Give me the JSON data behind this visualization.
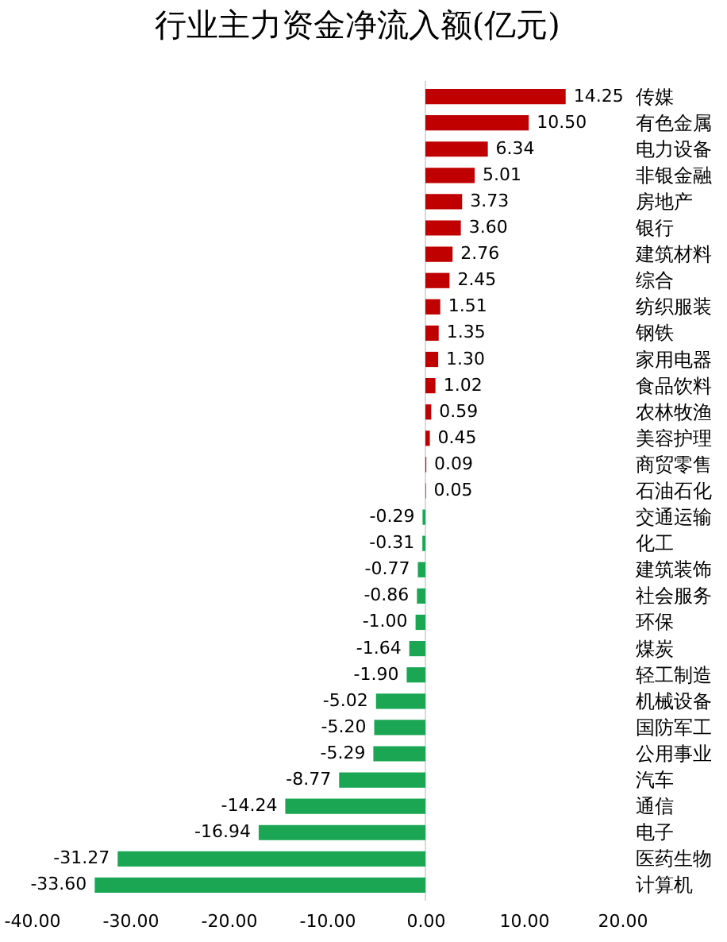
{
  "chart_data": {
    "type": "bar",
    "orientation": "horizontal",
    "title": "行业主力资金净流入额(亿元)",
    "categories": [
      "传媒",
      "有色金属",
      "电力设备",
      "非银金融",
      "房地产",
      "银行",
      "建筑材料",
      "综合",
      "纺织服装",
      "钢铁",
      "家用电器",
      "食品饮料",
      "农林牧渔",
      "美容护理",
      "商贸零售",
      "石油石化",
      "交通运输",
      "化工",
      "建筑装饰",
      "社会服务",
      "环保",
      "煤炭",
      "轻工制造",
      "机械设备",
      "国防军工",
      "公用事业",
      "汽车",
      "通信",
      "电子",
      "医药生物",
      "计算机"
    ],
    "values": [
      14.25,
      10.5,
      6.34,
      5.01,
      3.73,
      3.6,
      2.76,
      2.45,
      1.51,
      1.35,
      1.3,
      1.02,
      0.59,
      0.45,
      0.09,
      0.05,
      -0.29,
      -0.31,
      -0.77,
      -0.86,
      -1.0,
      -1.64,
      -1.9,
      -5.02,
      -5.2,
      -5.29,
      -8.77,
      -14.24,
      -16.94,
      -31.27,
      -33.6
    ],
    "value_labels": [
      "14.25",
      "10.50",
      "6.34",
      "5.01",
      "3.73",
      "3.60",
      "2.76",
      "2.45",
      "1.51",
      "1.35",
      "1.30",
      "1.02",
      "0.59",
      "0.45",
      "0.09",
      "0.05",
      "-0.29",
      "-0.31",
      "-0.77",
      "-0.86",
      "-1.00",
      "-1.64",
      "-1.90",
      "-5.02",
      "-5.20",
      "-5.29",
      "-8.77",
      "-14.24",
      "-16.94",
      "-31.27",
      "-33.60"
    ],
    "colors": [
      "#c00000",
      "#c00000",
      "#c00000",
      "#c00000",
      "#c00000",
      "#c00000",
      "#c00000",
      "#c00000",
      "#c00000",
      "#c00000",
      "#c00000",
      "#c00000",
      "#c00000",
      "#c00000",
      "#c00000",
      "#c00000",
      "#1aa653",
      "#1aa653",
      "#1aa653",
      "#1aa653",
      "#1aa653",
      "#1aa653",
      "#1aa653",
      "#1aa653",
      "#1aa653",
      "#1aa653",
      "#1aa653",
      "#1aa653",
      "#1aa653",
      "#1aa653",
      "#1aa653"
    ],
    "xlim": [
      -40,
      20
    ],
    "xticks": [
      {
        "value": -40,
        "label": "-40.00"
      },
      {
        "value": -30,
        "label": "-30.00"
      },
      {
        "value": -20,
        "label": "-20.00"
      },
      {
        "value": -10,
        "label": "-10.00"
      },
      {
        "value": 0,
        "label": "0.00"
      },
      {
        "value": 10,
        "label": "10.00"
      },
      {
        "value": 20,
        "label": "20.00"
      }
    ],
    "ref_lines": [
      {
        "axis": "x",
        "value": 0,
        "color": "#d9d9d9"
      }
    ],
    "grid": false
  }
}
